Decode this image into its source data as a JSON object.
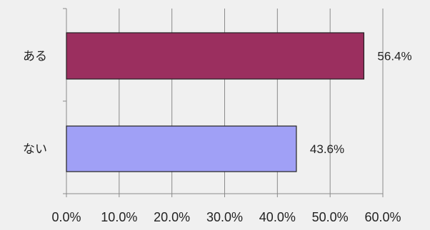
{
  "chart_data": {
    "type": "bar",
    "orientation": "horizontal",
    "categories": [
      "ある",
      "ない"
    ],
    "values": [
      56.4,
      43.6
    ],
    "value_labels": [
      "56.4%",
      "43.6%"
    ],
    "bar_colors": [
      "#9b2f5f",
      "#a0a0f6"
    ],
    "xlim": [
      0,
      60
    ],
    "xticks": [
      0,
      10,
      20,
      30,
      40,
      50,
      60
    ],
    "xtick_labels": [
      "0.0%",
      "10.0%",
      "20.0%",
      "30.0%",
      "40.0%",
      "50.0%",
      "60.0%"
    ],
    "grid": true,
    "legend": "none"
  }
}
